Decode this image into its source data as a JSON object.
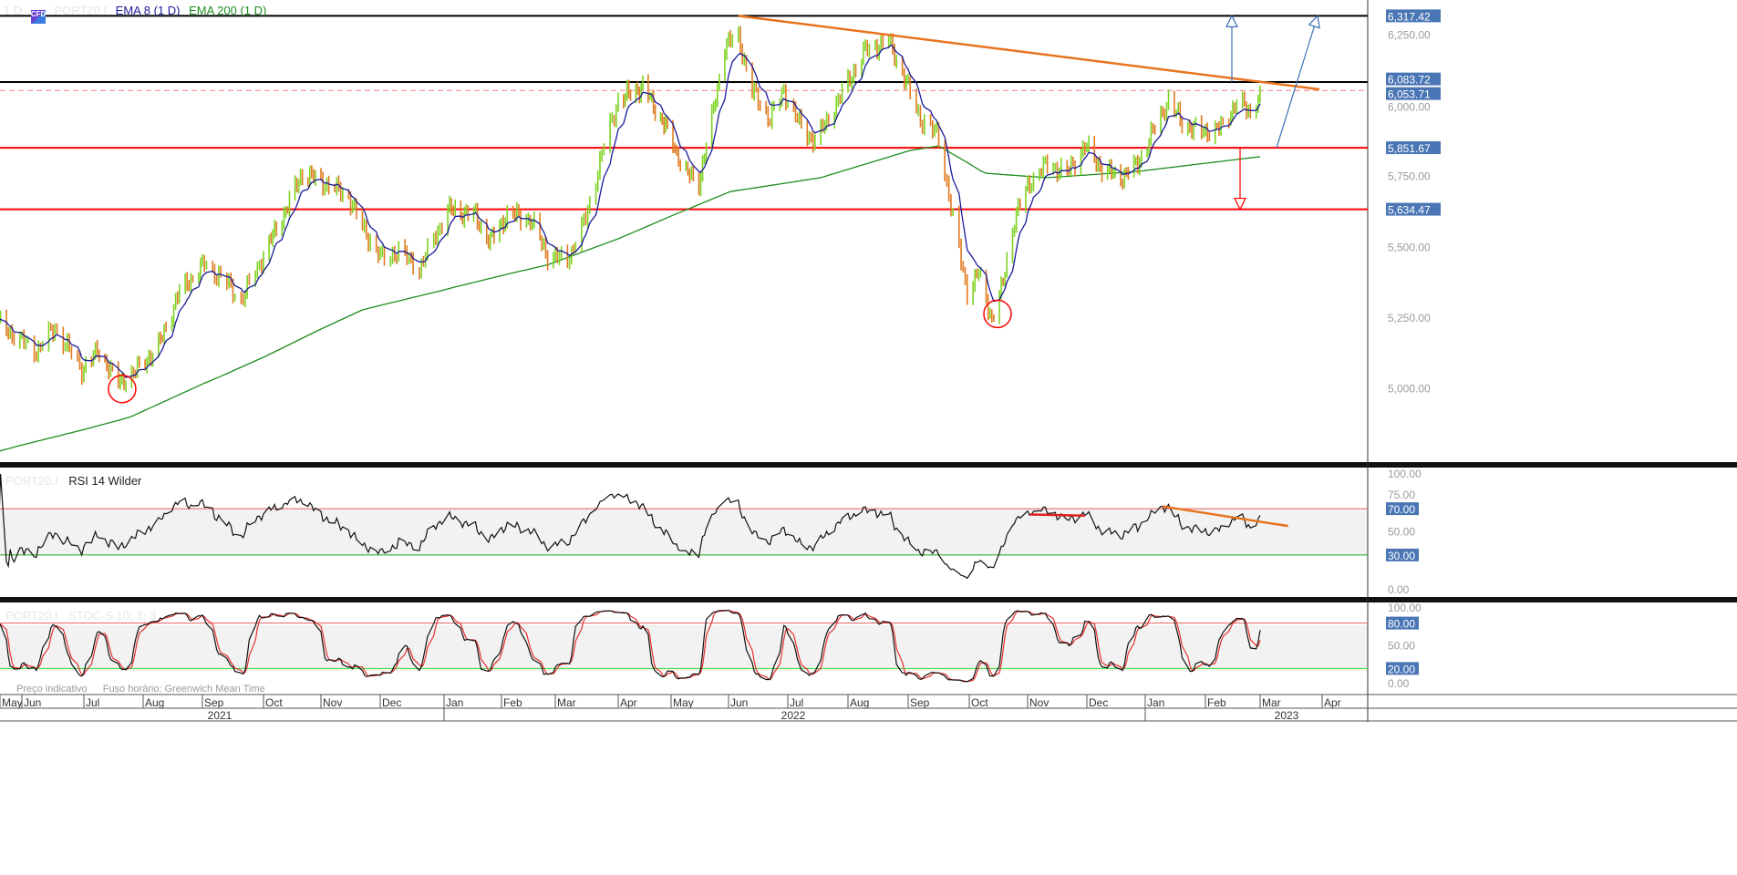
{
  "header": {
    "interval": "1 D",
    "symbol": "PORT20.I",
    "badge": "CFD",
    "ema_fast": "EMA 8 (1 D)",
    "ema_slow": "EMA 200 (1 D)"
  },
  "rsi_pane": {
    "symbol": "PORT20.I",
    "title": "RSI 14 Wilder"
  },
  "stoch_pane": {
    "symbol": "PORT20.I",
    "title": "STOC-S 10; 3; 3"
  },
  "footer": {
    "price_note": "Preço indicativo",
    "timezone": "Fuso horário: Greenwich Mean Time"
  },
  "colors": {
    "up": "#7ed321",
    "down": "#e07b20",
    "ema_fast": "#1a1a9a",
    "ema_slow": "#1e8c1e",
    "resistance": "#000000",
    "support": "#ff0000",
    "trendline": "#e8731e",
    "label_box": "#4a76b5",
    "arrow": "#3a6fb5"
  },
  "chart_data": [
    {
      "type": "ohlc",
      "ylim": [
        4780,
        6380
      ],
      "y_ticks": [
        "6,250.00",
        "6,000.00",
        "5,750.00",
        "5,500.00",
        "5,250.00",
        "5,000.00"
      ],
      "y_tick_values": [
        6250,
        6000,
        5750,
        5500,
        5250,
        5000
      ],
      "x_ticks": [
        "May",
        "Jun",
        "Jul",
        "Aug",
        "Sep",
        "Oct",
        "Nov",
        "Dec",
        "Jan",
        "Feb",
        "Mar",
        "Apr",
        "May",
        "Jun",
        "Jul",
        "Aug",
        "Sep",
        "Oct",
        "Nov",
        "Dec",
        "Jan",
        "Feb",
        "Mar",
        "Apr"
      ],
      "years": [
        "2021",
        "2022",
        "2023"
      ],
      "close": [
        [
          "2021-05-20",
          5230
        ],
        [
          "2021-06-08",
          5134
        ],
        [
          "2021-06-17",
          5215
        ],
        [
          "2021-06-30",
          5070
        ],
        [
          "2021-07-09",
          5134
        ],
        [
          "2021-07-19",
          5022
        ],
        [
          "2021-07-27",
          5054
        ],
        [
          "2021-08-09",
          5150
        ],
        [
          "2021-08-20",
          5343
        ],
        [
          "2021-09-02",
          5440
        ],
        [
          "2021-09-13",
          5376
        ],
        [
          "2021-09-20",
          5311
        ],
        [
          "2021-10-01",
          5472
        ],
        [
          "2021-10-13",
          5633
        ],
        [
          "2021-10-22",
          5762
        ],
        [
          "2021-11-02",
          5730
        ],
        [
          "2021-11-15",
          5681
        ],
        [
          "2021-11-22",
          5570
        ],
        [
          "2021-12-02",
          5456
        ],
        [
          "2021-12-10",
          5488
        ],
        [
          "2021-12-20",
          5424
        ],
        [
          "2022-01-03",
          5633
        ],
        [
          "2022-01-17",
          5617
        ],
        [
          "2022-01-26",
          5520
        ],
        [
          "2022-02-04",
          5617
        ],
        [
          "2022-02-16",
          5600
        ],
        [
          "2022-02-25",
          5472
        ],
        [
          "2022-03-07",
          5456
        ],
        [
          "2022-03-16",
          5600
        ],
        [
          "2022-03-25",
          5858
        ],
        [
          "2022-04-01",
          6019
        ],
        [
          "2022-04-15",
          6068
        ],
        [
          "2022-04-28",
          5923
        ],
        [
          "2022-05-09",
          5762
        ],
        [
          "2022-05-16",
          5730
        ],
        [
          "2022-05-23",
          5955
        ],
        [
          "2022-05-30",
          6212
        ],
        [
          "2022-06-06",
          6245
        ],
        [
          "2022-06-13",
          6051
        ],
        [
          "2022-06-22",
          5955
        ],
        [
          "2022-06-29",
          6051
        ],
        [
          "2022-07-08",
          5923
        ],
        [
          "2022-07-15",
          5874
        ],
        [
          "2022-07-22",
          5955
        ],
        [
          "2022-08-01",
          6084
        ],
        [
          "2022-08-10",
          6196
        ],
        [
          "2022-08-22",
          6228
        ],
        [
          "2022-08-29",
          6116
        ],
        [
          "2022-09-07",
          5955
        ],
        [
          "2022-09-16",
          5891
        ],
        [
          "2022-09-23",
          5600
        ],
        [
          "2022-09-30",
          5343
        ],
        [
          "2022-10-06",
          5408
        ],
        [
          "2022-10-13",
          5247
        ],
        [
          "2022-10-18",
          5343
        ],
        [
          "2022-10-25",
          5600
        ],
        [
          "2022-11-02",
          5730
        ],
        [
          "2022-11-11",
          5794
        ],
        [
          "2022-11-21",
          5762
        ],
        [
          "2022-11-30",
          5858
        ],
        [
          "2022-12-09",
          5778
        ],
        [
          "2022-12-19",
          5746
        ],
        [
          "2022-12-28",
          5794
        ],
        [
          "2023-01-06",
          5923
        ],
        [
          "2023-01-13",
          6019
        ],
        [
          "2023-01-20",
          5939
        ],
        [
          "2023-01-30",
          5907
        ],
        [
          "2023-02-10",
          5923
        ],
        [
          "2023-02-17",
          6019
        ],
        [
          "2023-02-24",
          5971
        ],
        [
          "2023-03-01",
          6053.71
        ]
      ],
      "ema200": [
        [
          "2021-05-20",
          4780
        ],
        [
          "2021-07-25",
          4900
        ],
        [
          "2021-09-13",
          5054
        ],
        [
          "2021-11-22",
          5279
        ],
        [
          "2022-01-07",
          5360
        ],
        [
          "2022-02-26",
          5440
        ],
        [
          "2022-04-16",
          5570
        ],
        [
          "2022-06-02",
          5697
        ],
        [
          "2022-07-18",
          5746
        ],
        [
          "2022-09-02",
          5842
        ],
        [
          "2022-09-16",
          5858
        ],
        [
          "2022-10-09",
          5762
        ],
        [
          "2022-11-11",
          5746
        ],
        [
          "2022-12-28",
          5768
        ],
        [
          "2023-03-01",
          5820
        ]
      ],
      "levels": [
        {
          "value": 6317.42,
          "label": "6,317.42",
          "kind": "resistance"
        },
        {
          "value": 6083.72,
          "label": "6,083.72",
          "kind": "resistance"
        },
        {
          "value": 6053.71,
          "label": "6,053.71",
          "kind": "last-price"
        },
        {
          "value": 5851.67,
          "label": "5,851.67",
          "kind": "support"
        },
        {
          "value": 5634.47,
          "label": "5,634.47",
          "kind": "support"
        }
      ],
      "trendline": [
        [
          "2022-06-06",
          6317.42
        ],
        [
          "2023-04-01",
          6058
        ]
      ],
      "circles": [
        [
          "2021-07-21",
          5000
        ],
        [
          "2022-10-16",
          5265
        ]
      ]
    },
    {
      "type": "line",
      "ylim": [
        0,
        100
      ],
      "y_ticks": [
        "100.00",
        "75.00",
        "50.00",
        "0.00"
      ],
      "y_tick_values": [
        100,
        75,
        50,
        0
      ],
      "levels": [
        {
          "value": 70,
          "label": "70.00"
        },
        {
          "value": 30,
          "label": "30.00"
        }
      ],
      "trendlines": [
        [
          [
            "2022-11-02",
            65
          ],
          [
            "2022-11-30",
            64
          ]
        ],
        [
          [
            "2023-01-10",
            72
          ],
          [
            "2023-03-15",
            55
          ]
        ]
      ]
    },
    {
      "type": "line",
      "ylim": [
        0,
        100
      ],
      "y_ticks": [
        "100.00",
        "50.00",
        "0.00"
      ],
      "y_tick_values": [
        100,
        50,
        0
      ],
      "levels": [
        {
          "value": 80,
          "label": "80.00"
        },
        {
          "value": 20,
          "label": "20.00"
        }
      ]
    }
  ]
}
